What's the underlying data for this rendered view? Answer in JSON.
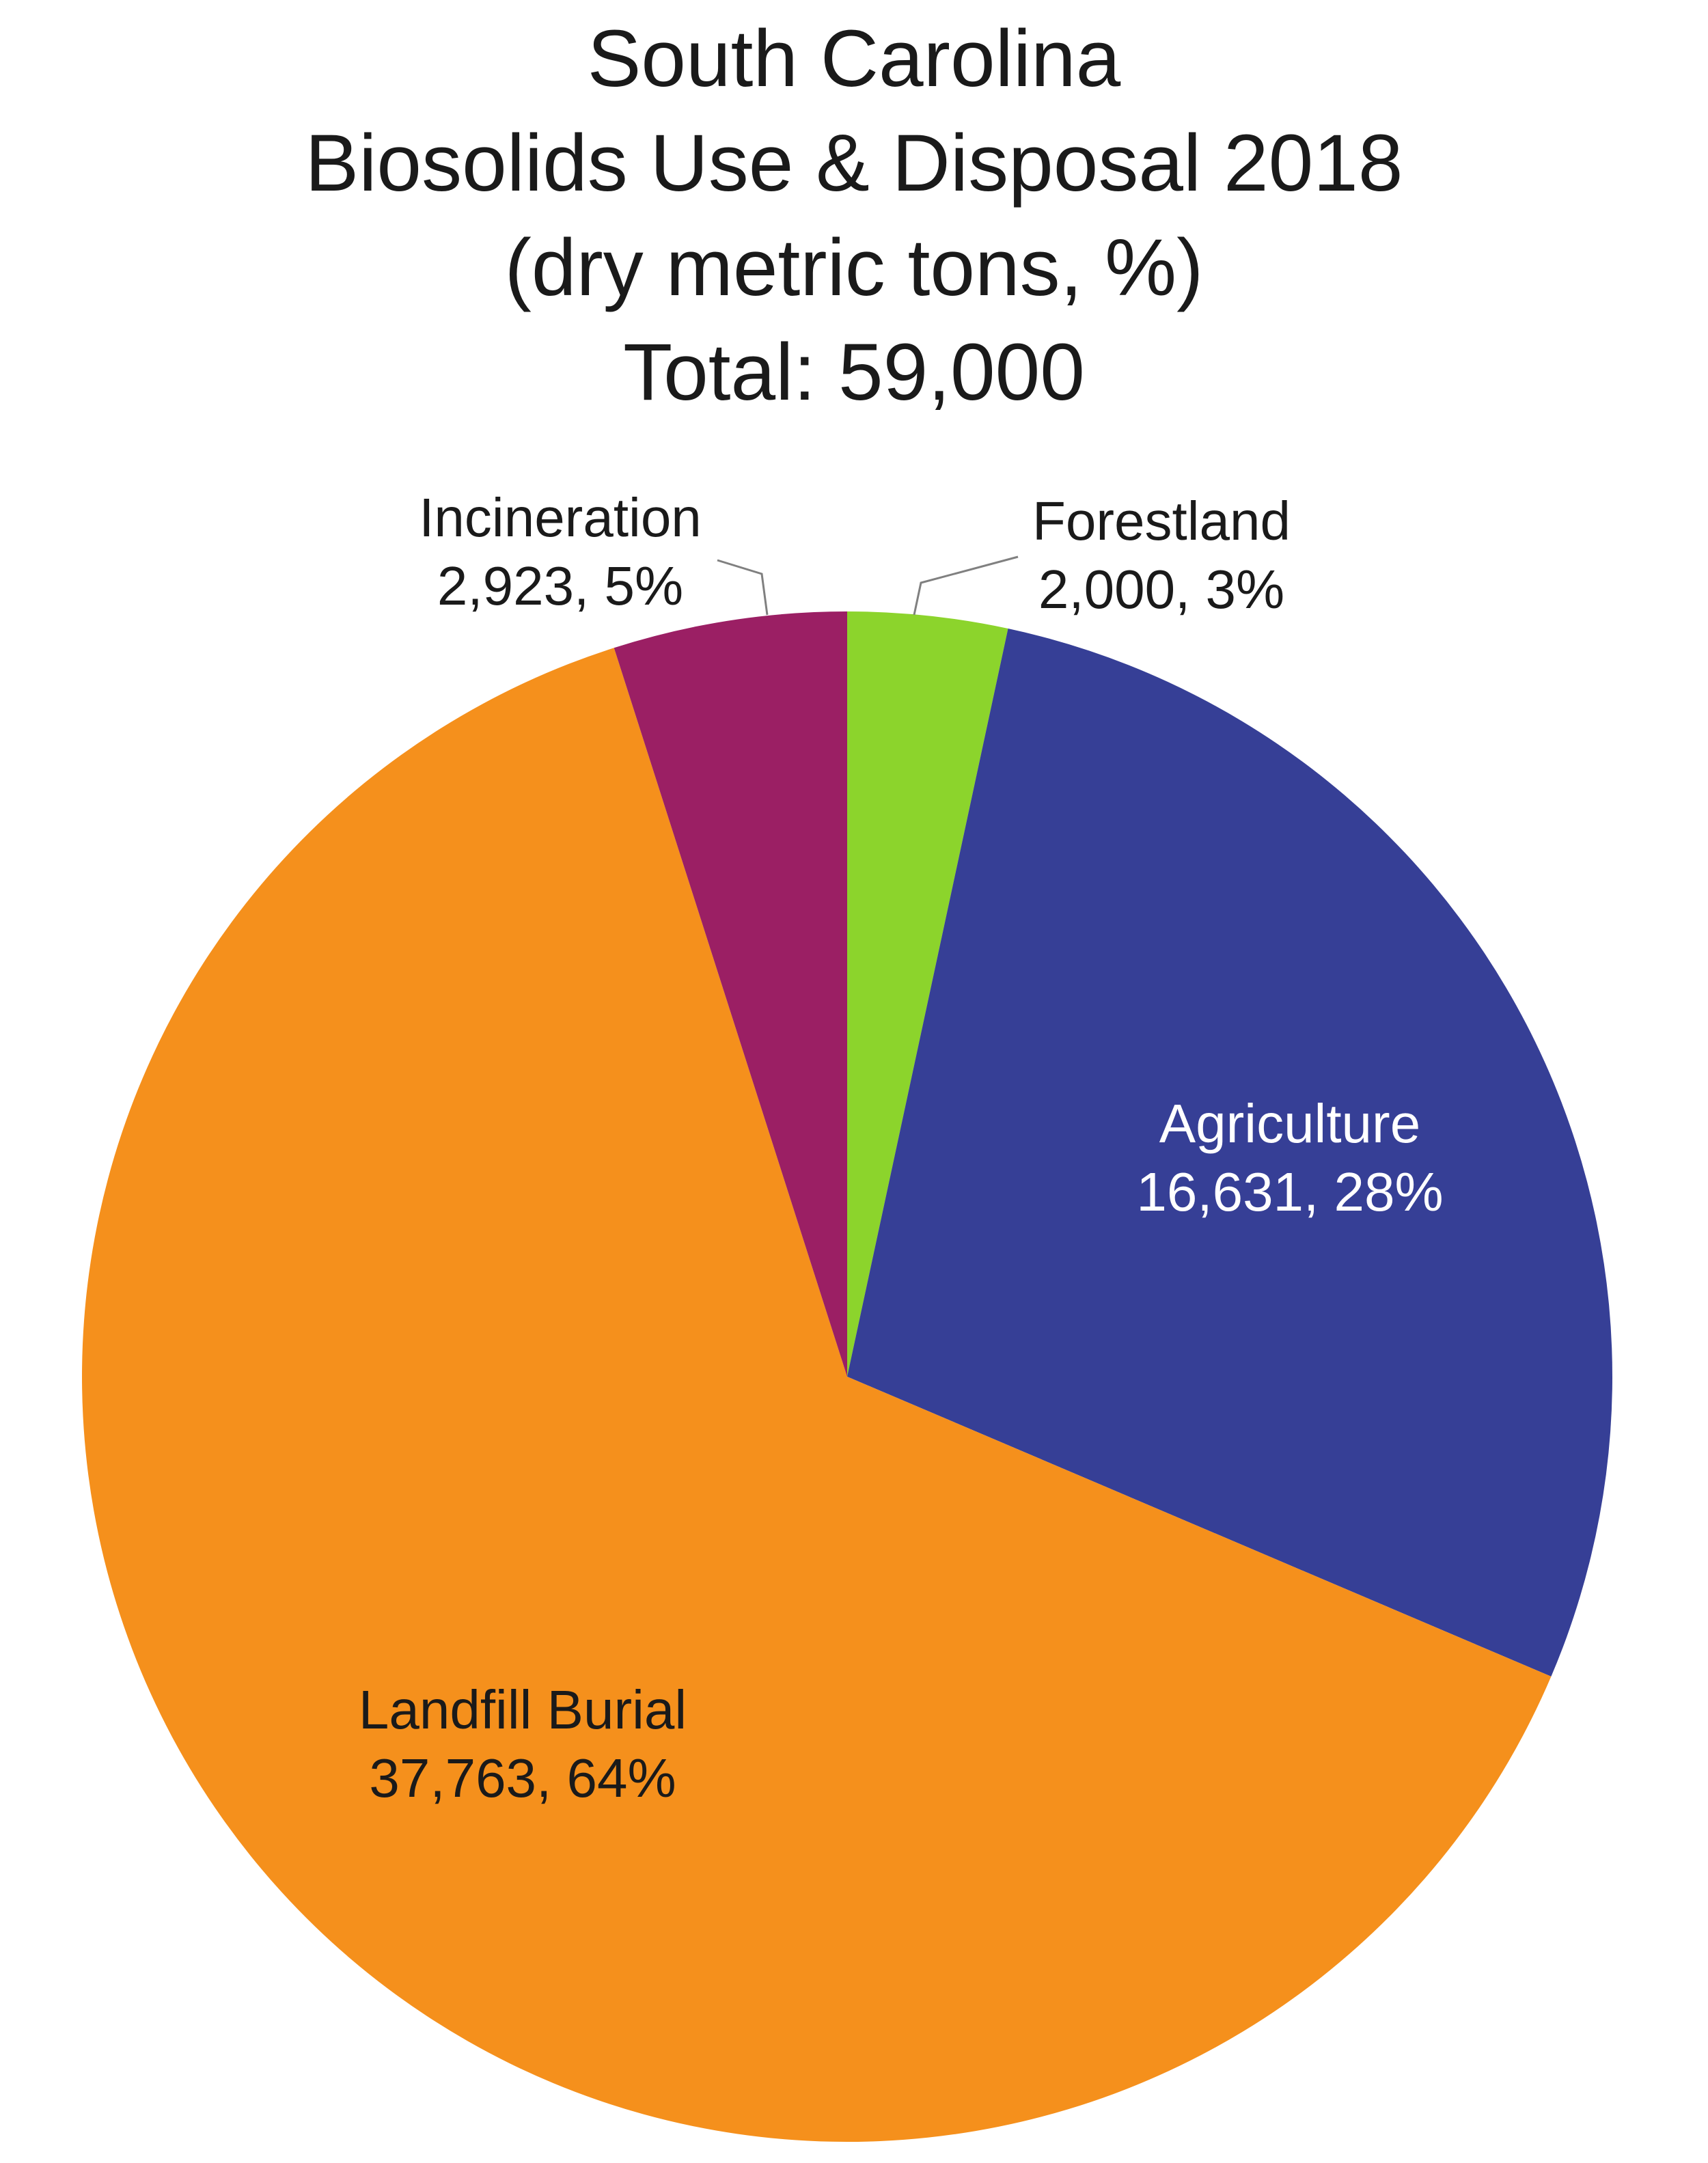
{
  "chart_data": {
    "type": "pie",
    "title_lines": [
      "South Carolina",
      "Biosolids Use & Disposal 2018",
      "(dry metric tons, %)",
      "Total: 59,000"
    ],
    "start_angle_deg": 0,
    "direction": "clockwise",
    "slices": [
      {
        "name": "Forestland",
        "value": 2000,
        "percent": "3%",
        "label_line1": "Forestland",
        "label_line2": "2,000, 3%",
        "color": "#8cd42c",
        "label_color": "#1a1a1a",
        "label_mode": "outside"
      },
      {
        "name": "Agriculture",
        "value": 16631,
        "percent": "28%",
        "label_line1": "Agriculture",
        "label_line2": "16,631, 28%",
        "color": "#363f96",
        "label_color": "#ffffff",
        "label_mode": "inside"
      },
      {
        "name": "Landfill Burial",
        "value": 37763,
        "percent": "64%",
        "label_line1": "Landfill Burial",
        "label_line2": "37,763, 64%",
        "color": "#f5901c",
        "label_color": "#1a1a1a",
        "label_mode": "inside"
      },
      {
        "name": "Incineration",
        "value": 2923,
        "percent": "5%",
        "label_line1": "Incineration",
        "label_line2": "2,923, 5%",
        "color": "#9b1f64",
        "label_color": "#1a1a1a",
        "label_mode": "outside"
      }
    ],
    "leader_line_color": "#808080",
    "legend": "none"
  }
}
